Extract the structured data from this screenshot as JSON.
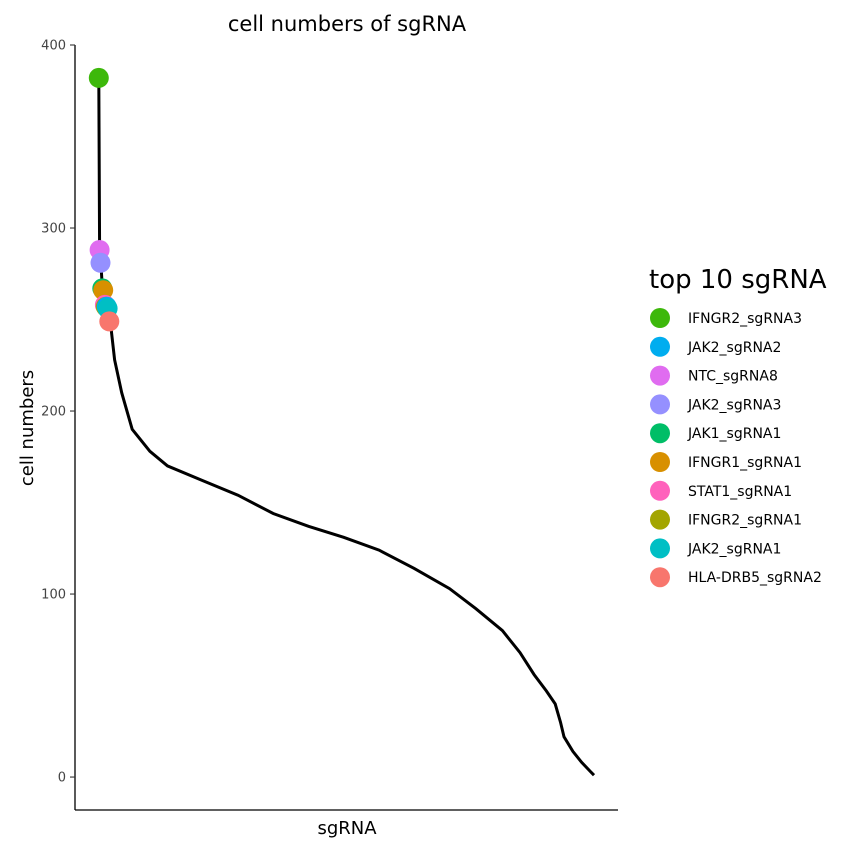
{
  "chart_data": {
    "type": "line",
    "title": "cell numbers of sgRNA",
    "xlabel": "sgRNA",
    "ylabel": "cell numbers",
    "ylim": [
      -18,
      400
    ],
    "xlim": [
      0,
      282
    ],
    "yticks": [
      0,
      100,
      200,
      300,
      400
    ],
    "grid": false,
    "legend_position": "right",
    "curve_anchors": [
      [
        1,
        382
      ],
      [
        1.5,
        288
      ],
      [
        2,
        284
      ],
      [
        3,
        268
      ],
      [
        4,
        262
      ],
      [
        5,
        258
      ],
      [
        6,
        254
      ],
      [
        8,
        245
      ],
      [
        10,
        228
      ],
      [
        14,
        210
      ],
      [
        20,
        190
      ],
      [
        30,
        178
      ],
      [
        40,
        170
      ],
      [
        60,
        162
      ],
      [
        80,
        154
      ],
      [
        100,
        144
      ],
      [
        120,
        137
      ],
      [
        140,
        131
      ],
      [
        160,
        124
      ],
      [
        180,
        114
      ],
      [
        200,
        103
      ],
      [
        215,
        92
      ],
      [
        230,
        80
      ],
      [
        240,
        68
      ],
      [
        248,
        56
      ],
      [
        255,
        47
      ],
      [
        260,
        40
      ],
      [
        263,
        30
      ],
      [
        265,
        22
      ],
      [
        270,
        14
      ],
      [
        275,
        8
      ],
      [
        280,
        3
      ],
      [
        282,
        1
      ]
    ],
    "legend": {
      "title": "top 10 sgRNA",
      "entries": [
        {
          "name": "IFNGR2_sgRNA3",
          "color": "#3db80b"
        },
        {
          "name": "JAK2_sgRNA2",
          "color": "#00adef"
        },
        {
          "name": "NTC_sgRNA8",
          "color": "#e06cf0"
        },
        {
          "name": "JAK2_sgRNA3",
          "color": "#9590ff"
        },
        {
          "name": "JAK1_sgRNA1",
          "color": "#00be67"
        },
        {
          "name": "IFNGR1_sgRNA1",
          "color": "#d89000"
        },
        {
          "name": "STAT1_sgRNA1",
          "color": "#ff62bc"
        },
        {
          "name": "IFNGR2_sgRNA1",
          "color": "#a3a500"
        },
        {
          "name": "JAK2_sgRNA1",
          "color": "#00bfc4"
        },
        {
          "name": "HLA-DRB5_sgRNA2",
          "color": "#f8766d"
        }
      ]
    },
    "highlight_points": [
      {
        "name": "IFNGR2_sgRNA3",
        "x": 1,
        "y": 382
      },
      {
        "name": "NTC_sgRNA8",
        "x": 1.5,
        "y": 288
      },
      {
        "name": "JAK2_sgRNA3",
        "x": 2,
        "y": 281
      },
      {
        "name": "JAK1_sgRNA1",
        "x": 3,
        "y": 267
      },
      {
        "name": "IFNGR1_sgRNA1",
        "x": 3.5,
        "y": 266
      },
      {
        "name": "STAT1_sgRNA1",
        "x": 4.5,
        "y": 258
      },
      {
        "name": "IFNGR2_sgRNA1",
        "x": 5,
        "y": 257
      },
      {
        "name": "JAK2_sgRNA2",
        "x": 5.5,
        "y": 257
      },
      {
        "name": "JAK2_sgRNA1",
        "x": 6,
        "y": 256
      },
      {
        "name": "HLA-DRB5_sgRNA2",
        "x": 7,
        "y": 249
      }
    ]
  }
}
